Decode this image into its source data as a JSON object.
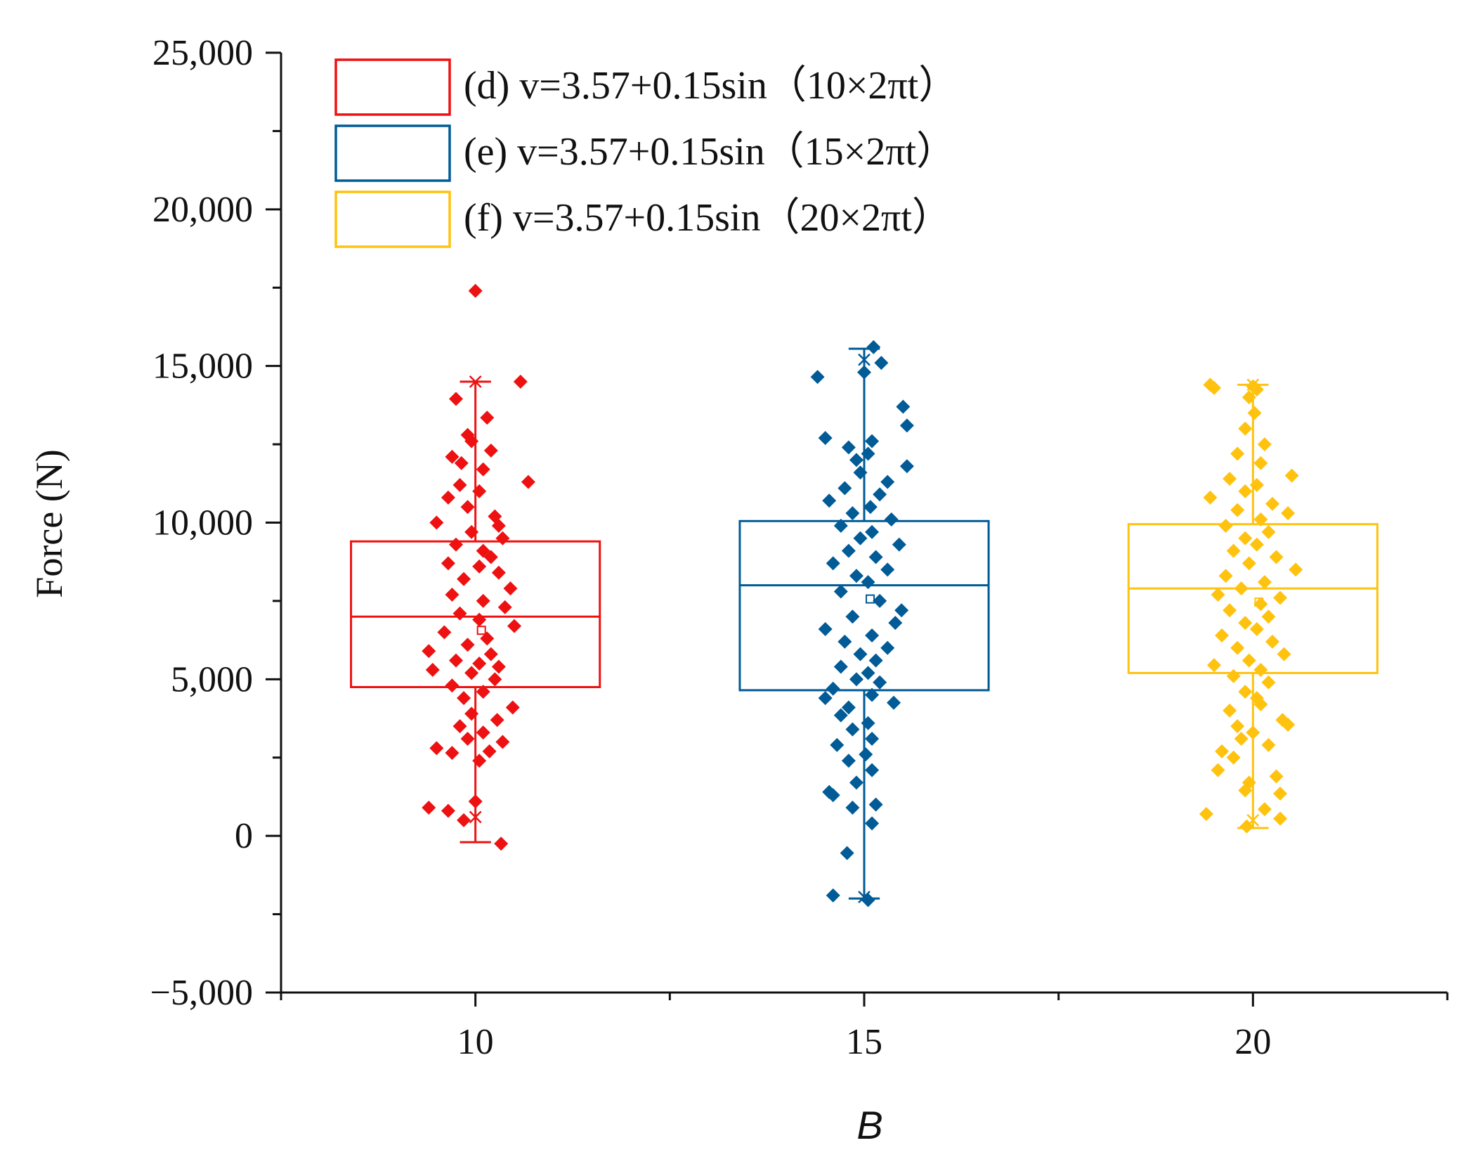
{
  "chart_data": {
    "type": "box",
    "xlabel": "B",
    "ylabel": "Force (N)",
    "ylim": [
      -5000,
      25000
    ],
    "yticks": [
      -5000,
      0,
      5000,
      10000,
      15000,
      20000,
      25000
    ],
    "ytick_labels": [
      "−5,000",
      "0",
      "5,000",
      "10,000",
      "15,000",
      "20,000",
      "25,000"
    ],
    "xlim": [
      7.5,
      22.5
    ],
    "xticks": [
      10,
      15,
      20
    ],
    "xtick_labels": [
      "10",
      "15",
      "20"
    ],
    "legend_position": "top-left",
    "series": [
      {
        "name": "(d) v=3.57+0.15sin（10×2πt）",
        "category": 10,
        "color": "#ee1111",
        "q1": 4750,
        "median": 7000,
        "q3": 9400,
        "whisker_low": -200,
        "whisker_high": 14500,
        "max_marker": 14500,
        "min_marker": 600,
        "outliers": [
          17400
        ],
        "points": [
          {
            "dx": 0.0,
            "y": 17400
          },
          {
            "dx": 0.58,
            "y": 14500
          },
          {
            "dx": -0.25,
            "y": 13950
          },
          {
            "dx": 0.15,
            "y": 13350
          },
          {
            "dx": -0.1,
            "y": 12800
          },
          {
            "dx": -0.05,
            "y": 12600
          },
          {
            "dx": 0.2,
            "y": 12300
          },
          {
            "dx": -0.3,
            "y": 12100
          },
          {
            "dx": -0.18,
            "y": 11900
          },
          {
            "dx": 0.1,
            "y": 11700
          },
          {
            "dx": 0.68,
            "y": 11300
          },
          {
            "dx": -0.2,
            "y": 11200
          },
          {
            "dx": 0.05,
            "y": 11000
          },
          {
            "dx": -0.35,
            "y": 10800
          },
          {
            "dx": -0.1,
            "y": 10500
          },
          {
            "dx": 0.25,
            "y": 10200
          },
          {
            "dx": -0.5,
            "y": 10000
          },
          {
            "dx": 0.3,
            "y": 9900
          },
          {
            "dx": -0.05,
            "y": 9700
          },
          {
            "dx": 0.35,
            "y": 9500
          },
          {
            "dx": -0.25,
            "y": 9300
          },
          {
            "dx": 0.1,
            "y": 9100
          },
          {
            "dx": 0.2,
            "y": 8900
          },
          {
            "dx": -0.35,
            "y": 8700
          },
          {
            "dx": 0.05,
            "y": 8600
          },
          {
            "dx": 0.3,
            "y": 8400
          },
          {
            "dx": -0.15,
            "y": 8200
          },
          {
            "dx": 0.45,
            "y": 7900
          },
          {
            "dx": -0.3,
            "y": 7700
          },
          {
            "dx": 0.1,
            "y": 7500
          },
          {
            "dx": 0.38,
            "y": 7300
          },
          {
            "dx": -0.2,
            "y": 7100
          },
          {
            "dx": 0.05,
            "y": 6900
          },
          {
            "dx": 0.5,
            "y": 6700
          },
          {
            "dx": -0.4,
            "y": 6500
          },
          {
            "dx": 0.15,
            "y": 6300
          },
          {
            "dx": -0.1,
            "y": 6100
          },
          {
            "dx": -0.6,
            "y": 5900
          },
          {
            "dx": 0.2,
            "y": 5800
          },
          {
            "dx": -0.25,
            "y": 5600
          },
          {
            "dx": 0.05,
            "y": 5500
          },
          {
            "dx": 0.3,
            "y": 5400
          },
          {
            "dx": -0.55,
            "y": 5300
          },
          {
            "dx": -0.05,
            "y": 5200
          },
          {
            "dx": 0.25,
            "y": 5000
          },
          {
            "dx": -0.3,
            "y": 4800
          },
          {
            "dx": 0.1,
            "y": 4600
          },
          {
            "dx": -0.15,
            "y": 4400
          },
          {
            "dx": 0.48,
            "y": 4100
          },
          {
            "dx": -0.05,
            "y": 3900
          },
          {
            "dx": 0.28,
            "y": 3700
          },
          {
            "dx": -0.2,
            "y": 3500
          },
          {
            "dx": 0.1,
            "y": 3300
          },
          {
            "dx": -0.1,
            "y": 3100
          },
          {
            "dx": 0.35,
            "y": 3000
          },
          {
            "dx": -0.5,
            "y": 2800
          },
          {
            "dx": 0.18,
            "y": 2700
          },
          {
            "dx": -0.3,
            "y": 2650
          },
          {
            "dx": 0.05,
            "y": 2400
          },
          {
            "dx": 0.0,
            "y": 1100
          },
          {
            "dx": -0.6,
            "y": 900
          },
          {
            "dx": -0.35,
            "y": 800
          },
          {
            "dx": -0.15,
            "y": 500
          },
          {
            "dx": 0.33,
            "y": -250
          }
        ]
      },
      {
        "name": "(e) v=3.57+0.15sin（15×2πt）",
        "category": 15,
        "color": "#005b96",
        "q1": 4650,
        "median": 8000,
        "q3": 10050,
        "whisker_low": -2000,
        "whisker_high": 15550,
        "max_marker": 15200,
        "min_marker": -1950,
        "outliers": [],
        "points": [
          {
            "dx": 0.12,
            "y": 15600
          },
          {
            "dx": 0.22,
            "y": 15100
          },
          {
            "dx": 0.0,
            "y": 14800
          },
          {
            "dx": -0.6,
            "y": 14650
          },
          {
            "dx": 0.5,
            "y": 13700
          },
          {
            "dx": 0.55,
            "y": 13100
          },
          {
            "dx": -0.5,
            "y": 12700
          },
          {
            "dx": 0.1,
            "y": 12600
          },
          {
            "dx": -0.2,
            "y": 12400
          },
          {
            "dx": 0.05,
            "y": 12200
          },
          {
            "dx": -0.1,
            "y": 12000
          },
          {
            "dx": 0.55,
            "y": 11800
          },
          {
            "dx": -0.05,
            "y": 11600
          },
          {
            "dx": 0.3,
            "y": 11300
          },
          {
            "dx": -0.25,
            "y": 11100
          },
          {
            "dx": 0.2,
            "y": 10900
          },
          {
            "dx": -0.45,
            "y": 10700
          },
          {
            "dx": 0.08,
            "y": 10500
          },
          {
            "dx": -0.15,
            "y": 10300
          },
          {
            "dx": 0.35,
            "y": 10100
          },
          {
            "dx": -0.3,
            "y": 9900
          },
          {
            "dx": 0.1,
            "y": 9700
          },
          {
            "dx": -0.05,
            "y": 9500
          },
          {
            "dx": 0.45,
            "y": 9300
          },
          {
            "dx": -0.2,
            "y": 9100
          },
          {
            "dx": 0.15,
            "y": 8900
          },
          {
            "dx": -0.4,
            "y": 8700
          },
          {
            "dx": 0.3,
            "y": 8500
          },
          {
            "dx": -0.1,
            "y": 8300
          },
          {
            "dx": 0.05,
            "y": 8100
          },
          {
            "dx": -0.3,
            "y": 7800
          },
          {
            "dx": 0.2,
            "y": 7500
          },
          {
            "dx": 0.48,
            "y": 7200
          },
          {
            "dx": -0.15,
            "y": 7000
          },
          {
            "dx": 0.4,
            "y": 6800
          },
          {
            "dx": -0.5,
            "y": 6600
          },
          {
            "dx": 0.1,
            "y": 6400
          },
          {
            "dx": -0.25,
            "y": 6200
          },
          {
            "dx": 0.3,
            "y": 6000
          },
          {
            "dx": -0.05,
            "y": 5800
          },
          {
            "dx": 0.15,
            "y": 5600
          },
          {
            "dx": -0.3,
            "y": 5400
          },
          {
            "dx": 0.05,
            "y": 5200
          },
          {
            "dx": -0.1,
            "y": 5000
          },
          {
            "dx": 0.2,
            "y": 4900
          },
          {
            "dx": -0.4,
            "y": 4700
          },
          {
            "dx": 0.1,
            "y": 4500
          },
          {
            "dx": -0.5,
            "y": 4400
          },
          {
            "dx": 0.38,
            "y": 4250
          },
          {
            "dx": -0.2,
            "y": 4100
          },
          {
            "dx": -0.3,
            "y": 3850
          },
          {
            "dx": 0.05,
            "y": 3600
          },
          {
            "dx": -0.15,
            "y": 3400
          },
          {
            "dx": 0.1,
            "y": 3100
          },
          {
            "dx": -0.35,
            "y": 2900
          },
          {
            "dx": 0.02,
            "y": 2600
          },
          {
            "dx": -0.2,
            "y": 2400
          },
          {
            "dx": 0.1,
            "y": 2100
          },
          {
            "dx": -0.1,
            "y": 1700
          },
          {
            "dx": -0.45,
            "y": 1400
          },
          {
            "dx": -0.4,
            "y": 1300
          },
          {
            "dx": 0.15,
            "y": 1000
          },
          {
            "dx": -0.15,
            "y": 900
          },
          {
            "dx": 0.1,
            "y": 400
          },
          {
            "dx": -0.22,
            "y": -550
          },
          {
            "dx": -0.4,
            "y": -1900
          },
          {
            "dx": 0.05,
            "y": -2050
          }
        ]
      },
      {
        "name": "(f) v=3.57+0.15sin（20×2πt）",
        "category": 20,
        "color": "#ffc20e",
        "q1": 5200,
        "median": 7900,
        "q3": 9950,
        "whisker_low": 250,
        "whisker_high": 14400,
        "max_marker": 14400,
        "min_marker": 500,
        "outliers": [],
        "points": [
          {
            "dx": -0.55,
            "y": 14400
          },
          {
            "dx": -0.5,
            "y": 14300
          },
          {
            "dx": 0.0,
            "y": 14350
          },
          {
            "dx": 0.05,
            "y": 14250
          },
          {
            "dx": -0.05,
            "y": 14000
          },
          {
            "dx": 0.02,
            "y": 13500
          },
          {
            "dx": -0.1,
            "y": 13000
          },
          {
            "dx": 0.15,
            "y": 12500
          },
          {
            "dx": -0.2,
            "y": 12200
          },
          {
            "dx": 0.1,
            "y": 11900
          },
          {
            "dx": 0.5,
            "y": 11500
          },
          {
            "dx": -0.3,
            "y": 11400
          },
          {
            "dx": 0.05,
            "y": 11200
          },
          {
            "dx": -0.1,
            "y": 11000
          },
          {
            "dx": -0.55,
            "y": 10800
          },
          {
            "dx": 0.25,
            "y": 10600
          },
          {
            "dx": -0.2,
            "y": 10400
          },
          {
            "dx": 0.45,
            "y": 10300
          },
          {
            "dx": 0.1,
            "y": 10100
          },
          {
            "dx": -0.35,
            "y": 9900
          },
          {
            "dx": 0.2,
            "y": 9700
          },
          {
            "dx": -0.1,
            "y": 9500
          },
          {
            "dx": 0.05,
            "y": 9300
          },
          {
            "dx": -0.25,
            "y": 9100
          },
          {
            "dx": 0.3,
            "y": 8900
          },
          {
            "dx": -0.05,
            "y": 8700
          },
          {
            "dx": 0.55,
            "y": 8500
          },
          {
            "dx": -0.35,
            "y": 8300
          },
          {
            "dx": 0.15,
            "y": 8100
          },
          {
            "dx": -0.15,
            "y": 7900
          },
          {
            "dx": -0.45,
            "y": 7700
          },
          {
            "dx": 0.35,
            "y": 7600
          },
          {
            "dx": 0.1,
            "y": 7400
          },
          {
            "dx": -0.3,
            "y": 7200
          },
          {
            "dx": 0.2,
            "y": 7000
          },
          {
            "dx": -0.1,
            "y": 6800
          },
          {
            "dx": 0.05,
            "y": 6600
          },
          {
            "dx": -0.4,
            "y": 6400
          },
          {
            "dx": 0.25,
            "y": 6200
          },
          {
            "dx": -0.2,
            "y": 6000
          },
          {
            "dx": 0.4,
            "y": 5800
          },
          {
            "dx": -0.05,
            "y": 5600
          },
          {
            "dx": -0.5,
            "y": 5450
          },
          {
            "dx": 0.1,
            "y": 5300
          },
          {
            "dx": -0.25,
            "y": 5100
          },
          {
            "dx": 0.2,
            "y": 4900
          },
          {
            "dx": -0.1,
            "y": 4600
          },
          {
            "dx": 0.05,
            "y": 4400
          },
          {
            "dx": 0.1,
            "y": 4200
          },
          {
            "dx": -0.3,
            "y": 4000
          },
          {
            "dx": 0.38,
            "y": 3700
          },
          {
            "dx": -0.2,
            "y": 3500
          },
          {
            "dx": 0.45,
            "y": 3550
          },
          {
            "dx": 0.0,
            "y": 3300
          },
          {
            "dx": -0.15,
            "y": 3100
          },
          {
            "dx": 0.2,
            "y": 2900
          },
          {
            "dx": -0.4,
            "y": 2700
          },
          {
            "dx": -0.25,
            "y": 2500
          },
          {
            "dx": -0.45,
            "y": 2100
          },
          {
            "dx": 0.3,
            "y": 1900
          },
          {
            "dx": -0.05,
            "y": 1700
          },
          {
            "dx": -0.1,
            "y": 1450
          },
          {
            "dx": 0.35,
            "y": 1350
          },
          {
            "dx": 0.15,
            "y": 850
          },
          {
            "dx": -0.6,
            "y": 700
          },
          {
            "dx": 0.35,
            "y": 550
          },
          {
            "dx": -0.08,
            "y": 300
          }
        ]
      }
    ]
  }
}
